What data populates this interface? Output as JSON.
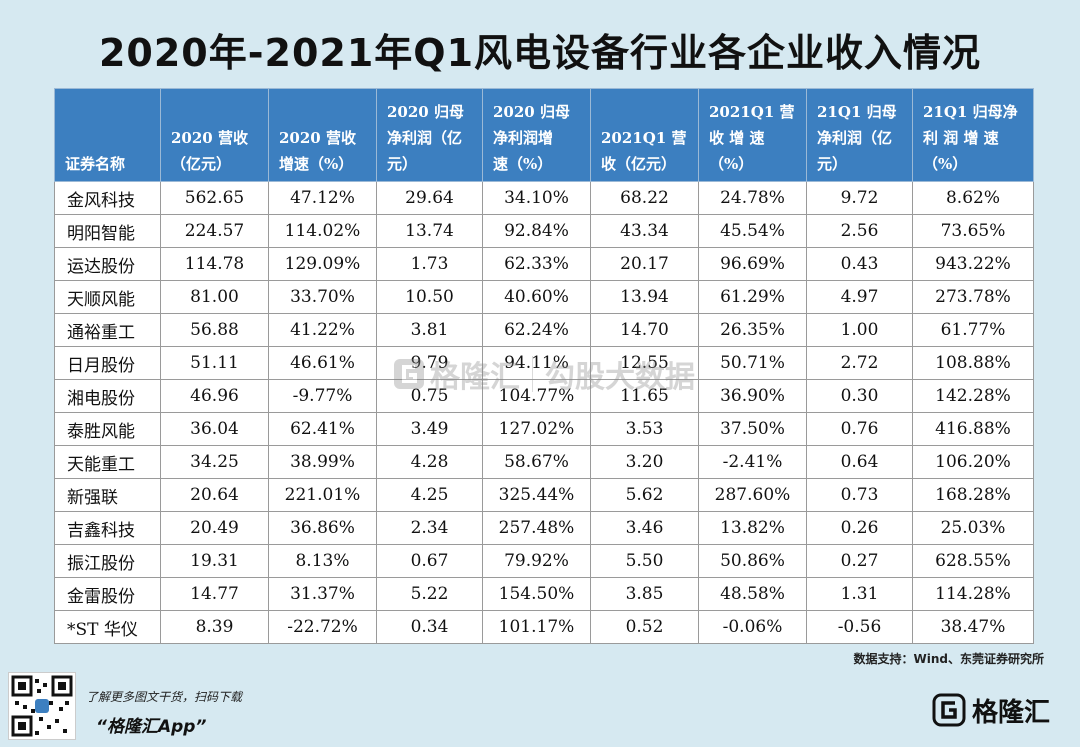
{
  "title": "2020年-2021年Q1风电设备行业各企业收入情况",
  "table": {
    "headers": [
      [
        "证券名称"
      ],
      [
        "2020 营收",
        "（亿元）"
      ],
      [
        "2020 营收",
        "增速（%）"
      ],
      [
        "2020 归母",
        "净利润（亿",
        "元）"
      ],
      [
        "2020 归母",
        "净利润增",
        "速（%）"
      ],
      [
        "2021Q1 营",
        "收（亿元）"
      ],
      [
        "2021Q1 营",
        "收 增 速",
        "（%）"
      ],
      [
        "21Q1 归母",
        "净利润（亿",
        "元）"
      ],
      [
        "21Q1 归母净",
        "利 润 增 速",
        "（%）"
      ]
    ],
    "rows": [
      [
        "金风科技",
        "562.65",
        "47.12%",
        "29.64",
        "34.10%",
        "68.22",
        "24.78%",
        "9.72",
        "8.62%"
      ],
      [
        "明阳智能",
        "224.57",
        "114.02%",
        "13.74",
        "92.84%",
        "43.34",
        "45.54%",
        "2.56",
        "73.65%"
      ],
      [
        "运达股份",
        "114.78",
        "129.09%",
        "1.73",
        "62.33%",
        "20.17",
        "96.69%",
        "0.43",
        "943.22%"
      ],
      [
        "天顺风能",
        "81.00",
        "33.70%",
        "10.50",
        "40.60%",
        "13.94",
        "61.29%",
        "4.97",
        "273.78%"
      ],
      [
        "通裕重工",
        "56.88",
        "41.22%",
        "3.81",
        "62.24%",
        "14.70",
        "26.35%",
        "1.00",
        "61.77%"
      ],
      [
        "日月股份",
        "51.11",
        "46.61%",
        "9.79",
        "94.11%",
        "12.55",
        "50.71%",
        "2.72",
        "108.88%"
      ],
      [
        "湘电股份",
        "46.96",
        "-9.77%",
        "0.75",
        "104.77%",
        "11.65",
        "36.90%",
        "0.30",
        "142.28%"
      ],
      [
        "泰胜风能",
        "36.04",
        "62.41%",
        "3.49",
        "127.02%",
        "3.53",
        "37.50%",
        "0.76",
        "416.88%"
      ],
      [
        "天能重工",
        "34.25",
        "38.99%",
        "4.28",
        "58.67%",
        "3.20",
        "-2.41%",
        "0.64",
        "106.20%"
      ],
      [
        "新强联",
        "20.64",
        "221.01%",
        "4.25",
        "325.44%",
        "5.62",
        "287.60%",
        "0.73",
        "168.28%"
      ],
      [
        "吉鑫科技",
        "20.49",
        "36.86%",
        "2.34",
        "257.48%",
        "3.46",
        "13.82%",
        "0.26",
        "25.03%"
      ],
      [
        "振江股份",
        "19.31",
        "8.13%",
        "0.67",
        "79.92%",
        "5.50",
        "50.86%",
        "0.27",
        "628.55%"
      ],
      [
        "金雷股份",
        "14.77",
        "31.37%",
        "5.22",
        "154.50%",
        "3.85",
        "48.58%",
        "1.31",
        "114.28%"
      ],
      [
        "*ST 华仪",
        "8.39",
        "-22.72%",
        "0.34",
        "101.17%",
        "0.52",
        "-0.06%",
        "-0.56",
        "38.47%"
      ]
    ]
  },
  "source": "数据支持：Wind、东莞证券研究所",
  "footer": {
    "promo_line1": "了解更多图文干货，扫码下载",
    "promo_line2": "“格隆汇App”",
    "logo_text": "格隆汇"
  },
  "watermark": {
    "text1": "格隆汇",
    "text2": "勾股大数据"
  },
  "colors": {
    "background": "#d6e9f1",
    "header_bg": "#3c7fc0",
    "header_text": "#ffffff"
  }
}
